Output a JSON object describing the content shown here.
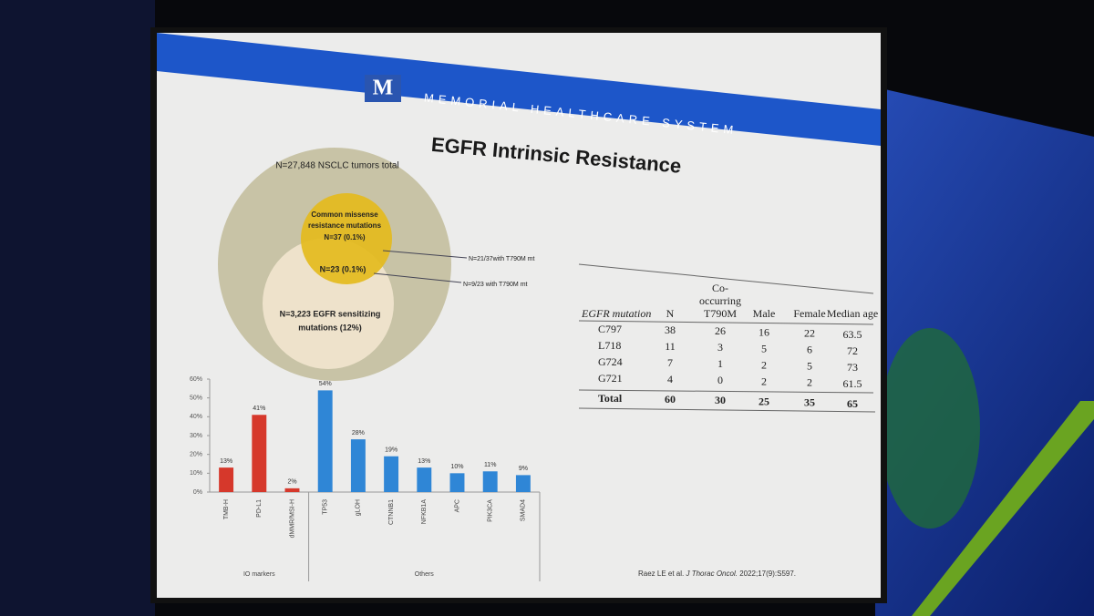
{
  "header": {
    "logo": "M",
    "brand": "MEMORIAL HEALTHCARE SYSTEM"
  },
  "title": "EGFR Intrinsic Resistance",
  "venn": {
    "outer": "N=27,848 NSCLC tumors total",
    "resistance": [
      "Common missense",
      "resistance mutations",
      "N=37 (0.1%)"
    ],
    "overlap": "N=23 (0.1%)",
    "sensitizing": [
      "N=3,223 EGFR sensitizing",
      "mutations (12%)"
    ],
    "callouts": [
      "N=21/37with T790M mt",
      "N=9/23 with T790M mt"
    ]
  },
  "chart_data": {
    "type": "bar",
    "categories": [
      "TMB-H",
      "PD-L1",
      "dMMR/MSI-H",
      "TP53",
      "gLOH",
      "CTNNB1",
      "NFKB1A",
      "APC",
      "PIK3CA",
      "SMAD4"
    ],
    "values": [
      13,
      41,
      2,
      54,
      28,
      19,
      13,
      10,
      11,
      9
    ],
    "value_labels": [
      "13%",
      "41%",
      "2%",
      "54%",
      "28%",
      "19%",
      "13%",
      "10%",
      "11%",
      "9%"
    ],
    "colors": [
      "#d6382b",
      "#d6382b",
      "#d6382b",
      "#2f86d6",
      "#2f86d6",
      "#2f86d6",
      "#2f86d6",
      "#2f86d6",
      "#2f86d6",
      "#2f86d6"
    ],
    "groups": [
      "IO markers",
      "Others"
    ],
    "ylim": [
      0,
      60
    ],
    "yticks": [
      {
        "value": 0,
        "label": "0%"
      },
      {
        "value": 10,
        "label": "10%"
      },
      {
        "value": 20,
        "label": "20%"
      },
      {
        "value": 30,
        "label": "30%"
      },
      {
        "value": 40,
        "label": "40%"
      },
      {
        "value": 50,
        "label": "50%"
      },
      {
        "value": 60,
        "label": "60%"
      }
    ]
  },
  "table": {
    "headers": [
      [
        "EGFR mutation"
      ],
      [
        "N"
      ],
      [
        "Co-",
        "occurring",
        "T790M"
      ],
      [
        "Male"
      ],
      [
        "Female"
      ],
      [
        "Median age"
      ]
    ],
    "rows": [
      [
        "C797",
        38,
        26,
        16,
        22,
        63.5
      ],
      [
        "L718",
        11,
        3,
        5,
        6,
        72
      ],
      [
        "G724",
        7,
        1,
        2,
        5,
        73
      ],
      [
        "G721",
        4,
        0,
        2,
        2,
        61.5
      ],
      [
        "Total",
        60,
        30,
        25,
        35,
        65
      ]
    ]
  },
  "citation": {
    "authors": "Raez LE et al.",
    "journal": "J Thorac Oncol.",
    "ref": "2022;17(9):S597."
  }
}
